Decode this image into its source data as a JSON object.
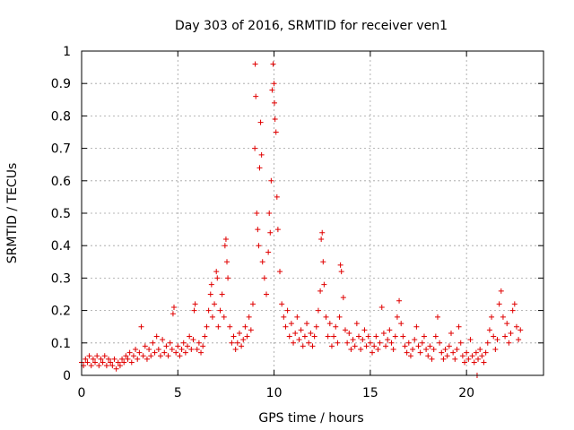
{
  "chart_data": {
    "type": "scatter",
    "title": "Day 303 of 2016, SRMTID for receiver ven1",
    "xlabel": "GPS time / hours",
    "ylabel": "SRMTID / TECUs",
    "xlim": [
      0,
      24
    ],
    "ylim": [
      0,
      1
    ],
    "xticks": [
      0,
      5,
      10,
      15,
      20
    ],
    "yticks": [
      0,
      0.1,
      0.2,
      0.3,
      0.4,
      0.5,
      0.6,
      0.7,
      0.8,
      0.9,
      1
    ],
    "xtick_labels": [
      "0",
      "5",
      "10",
      "15",
      "20"
    ],
    "ytick_labels": [
      "0",
      "0.1",
      "0.2",
      "0.3",
      "0.4",
      "0.5",
      "0.6",
      "0.7",
      "0.8",
      "0.9",
      "1"
    ],
    "grid": true,
    "marker": "+",
    "series": [
      {
        "name": "SRMTID",
        "color": "#e00000",
        "points": [
          [
            0.0,
            0.04
          ],
          [
            0.1,
            0.03
          ],
          [
            0.2,
            0.05
          ],
          [
            0.3,
            0.04
          ],
          [
            0.4,
            0.06
          ],
          [
            0.5,
            0.03
          ],
          [
            0.6,
            0.05
          ],
          [
            0.7,
            0.04
          ],
          [
            0.8,
            0.06
          ],
          [
            0.9,
            0.03
          ],
          [
            1.0,
            0.05
          ],
          [
            1.1,
            0.04
          ],
          [
            1.2,
            0.06
          ],
          [
            1.3,
            0.03
          ],
          [
            1.4,
            0.05
          ],
          [
            1.5,
            0.04
          ],
          [
            1.6,
            0.03
          ],
          [
            1.7,
            0.05
          ],
          [
            1.8,
            0.02
          ],
          [
            1.9,
            0.04
          ],
          [
            2.0,
            0.03
          ],
          [
            2.1,
            0.05
          ],
          [
            2.2,
            0.04
          ],
          [
            2.3,
            0.06
          ],
          [
            2.4,
            0.05
          ],
          [
            2.5,
            0.07
          ],
          [
            2.6,
            0.04
          ],
          [
            2.7,
            0.06
          ],
          [
            2.8,
            0.08
          ],
          [
            2.9,
            0.05
          ],
          [
            3.0,
            0.07
          ],
          [
            3.1,
            0.15
          ],
          [
            3.2,
            0.06
          ],
          [
            3.3,
            0.09
          ],
          [
            3.4,
            0.05
          ],
          [
            3.5,
            0.08
          ],
          [
            3.6,
            0.06
          ],
          [
            3.7,
            0.1
          ],
          [
            3.8,
            0.07
          ],
          [
            3.9,
            0.12
          ],
          [
            4.0,
            0.08
          ],
          [
            4.1,
            0.06
          ],
          [
            4.2,
            0.11
          ],
          [
            4.3,
            0.07
          ],
          [
            4.4,
            0.09
          ],
          [
            4.5,
            0.06
          ],
          [
            4.6,
            0.1
          ],
          [
            4.7,
            0.08
          ],
          [
            4.75,
            0.19
          ],
          [
            4.8,
            0.21
          ],
          [
            4.9,
            0.07
          ],
          [
            5.0,
            0.09
          ],
          [
            5.1,
            0.06
          ],
          [
            5.2,
            0.08
          ],
          [
            5.3,
            0.1
          ],
          [
            5.4,
            0.07
          ],
          [
            5.5,
            0.09
          ],
          [
            5.6,
            0.12
          ],
          [
            5.7,
            0.08
          ],
          [
            5.8,
            0.11
          ],
          [
            5.85,
            0.2
          ],
          [
            5.9,
            0.22
          ],
          [
            6.0,
            0.08
          ],
          [
            6.1,
            0.1
          ],
          [
            6.2,
            0.07
          ],
          [
            6.3,
            0.09
          ],
          [
            6.4,
            0.12
          ],
          [
            6.5,
            0.15
          ],
          [
            6.6,
            0.2
          ],
          [
            6.7,
            0.25
          ],
          [
            6.75,
            0.28
          ],
          [
            6.8,
            0.18
          ],
          [
            6.9,
            0.22
          ],
          [
            7.0,
            0.32
          ],
          [
            7.05,
            0.3
          ],
          [
            7.1,
            0.15
          ],
          [
            7.2,
            0.2
          ],
          [
            7.3,
            0.25
          ],
          [
            7.4,
            0.18
          ],
          [
            7.45,
            0.4
          ],
          [
            7.5,
            0.42
          ],
          [
            7.55,
            0.35
          ],
          [
            7.6,
            0.3
          ],
          [
            7.7,
            0.15
          ],
          [
            7.8,
            0.1
          ],
          [
            7.9,
            0.12
          ],
          [
            8.0,
            0.08
          ],
          [
            8.1,
            0.1
          ],
          [
            8.2,
            0.13
          ],
          [
            8.3,
            0.09
          ],
          [
            8.4,
            0.11
          ],
          [
            8.5,
            0.15
          ],
          [
            8.6,
            0.12
          ],
          [
            8.7,
            0.18
          ],
          [
            8.8,
            0.14
          ],
          [
            8.9,
            0.22
          ],
          [
            9.0,
            0.7
          ],
          [
            9.02,
            0.96
          ],
          [
            9.05,
            0.86
          ],
          [
            9.1,
            0.5
          ],
          [
            9.15,
            0.45
          ],
          [
            9.2,
            0.4
          ],
          [
            9.25,
            0.64
          ],
          [
            9.3,
            0.78
          ],
          [
            9.35,
            0.68
          ],
          [
            9.4,
            0.35
          ],
          [
            9.5,
            0.3
          ],
          [
            9.6,
            0.25
          ],
          [
            9.7,
            0.38
          ],
          [
            9.75,
            0.5
          ],
          [
            9.8,
            0.44
          ],
          [
            9.85,
            0.6
          ],
          [
            9.9,
            0.88
          ],
          [
            9.95,
            0.96
          ],
          [
            10.0,
            0.9
          ],
          [
            10.02,
            0.84
          ],
          [
            10.05,
            0.79
          ],
          [
            10.1,
            0.75
          ],
          [
            10.15,
            0.55
          ],
          [
            10.2,
            0.45
          ],
          [
            10.3,
            0.32
          ],
          [
            10.4,
            0.22
          ],
          [
            10.5,
            0.18
          ],
          [
            10.6,
            0.15
          ],
          [
            10.7,
            0.2
          ],
          [
            10.8,
            0.12
          ],
          [
            10.9,
            0.16
          ],
          [
            11.0,
            0.1
          ],
          [
            11.1,
            0.13
          ],
          [
            11.2,
            0.18
          ],
          [
            11.3,
            0.11
          ],
          [
            11.4,
            0.14
          ],
          [
            11.5,
            0.09
          ],
          [
            11.6,
            0.12
          ],
          [
            11.7,
            0.16
          ],
          [
            11.8,
            0.1
          ],
          [
            11.9,
            0.13
          ],
          [
            12.0,
            0.09
          ],
          [
            12.1,
            0.12
          ],
          [
            12.2,
            0.15
          ],
          [
            12.3,
            0.2
          ],
          [
            12.4,
            0.26
          ],
          [
            12.45,
            0.42
          ],
          [
            12.5,
            0.44
          ],
          [
            12.55,
            0.35
          ],
          [
            12.6,
            0.28
          ],
          [
            12.7,
            0.18
          ],
          [
            12.8,
            0.12
          ],
          [
            12.9,
            0.16
          ],
          [
            13.0,
            0.09
          ],
          [
            13.1,
            0.12
          ],
          [
            13.2,
            0.15
          ],
          [
            13.3,
            0.1
          ],
          [
            13.4,
            0.18
          ],
          [
            13.45,
            0.34
          ],
          [
            13.5,
            0.32
          ],
          [
            13.6,
            0.24
          ],
          [
            13.7,
            0.14
          ],
          [
            13.8,
            0.1
          ],
          [
            13.9,
            0.13
          ],
          [
            14.0,
            0.08
          ],
          [
            14.1,
            0.11
          ],
          [
            14.2,
            0.09
          ],
          [
            14.3,
            0.16
          ],
          [
            14.4,
            0.12
          ],
          [
            14.5,
            0.08
          ],
          [
            14.6,
            0.11
          ],
          [
            14.7,
            0.14
          ],
          [
            14.8,
            0.09
          ],
          [
            14.9,
            0.12
          ],
          [
            15.0,
            0.1
          ],
          [
            15.1,
            0.07
          ],
          [
            15.2,
            0.09
          ],
          [
            15.3,
            0.12
          ],
          [
            15.4,
            0.08
          ],
          [
            15.5,
            0.1
          ],
          [
            15.6,
            0.21
          ],
          [
            15.7,
            0.13
          ],
          [
            15.8,
            0.09
          ],
          [
            15.9,
            0.11
          ],
          [
            16.0,
            0.14
          ],
          [
            16.1,
            0.1
          ],
          [
            16.2,
            0.08
          ],
          [
            16.3,
            0.12
          ],
          [
            16.4,
            0.18
          ],
          [
            16.5,
            0.23
          ],
          [
            16.6,
            0.16
          ],
          [
            16.7,
            0.12
          ],
          [
            16.8,
            0.09
          ],
          [
            16.9,
            0.07
          ],
          [
            17.0,
            0.1
          ],
          [
            17.1,
            0.06
          ],
          [
            17.2,
            0.08
          ],
          [
            17.3,
            0.11
          ],
          [
            17.4,
            0.15
          ],
          [
            17.5,
            0.09
          ],
          [
            17.6,
            0.07
          ],
          [
            17.7,
            0.1
          ],
          [
            17.8,
            0.12
          ],
          [
            17.9,
            0.08
          ],
          [
            18.0,
            0.06
          ],
          [
            18.1,
            0.09
          ],
          [
            18.2,
            0.05
          ],
          [
            18.3,
            0.08
          ],
          [
            18.4,
            0.12
          ],
          [
            18.5,
            0.18
          ],
          [
            18.6,
            0.1
          ],
          [
            18.7,
            0.07
          ],
          [
            18.8,
            0.05
          ],
          [
            18.9,
            0.08
          ],
          [
            19.0,
            0.06
          ],
          [
            19.1,
            0.09
          ],
          [
            19.2,
            0.13
          ],
          [
            19.3,
            0.07
          ],
          [
            19.4,
            0.05
          ],
          [
            19.5,
            0.08
          ],
          [
            19.6,
            0.15
          ],
          [
            19.7,
            0.1
          ],
          [
            19.8,
            0.06
          ],
          [
            19.9,
            0.04
          ],
          [
            20.0,
            0.07
          ],
          [
            20.1,
            0.05
          ],
          [
            20.2,
            0.11
          ],
          [
            20.3,
            0.06
          ],
          [
            20.4,
            0.04
          ],
          [
            20.5,
            0.07
          ],
          [
            20.55,
            0.0
          ],
          [
            20.6,
            0.05
          ],
          [
            20.7,
            0.08
          ],
          [
            20.8,
            0.06
          ],
          [
            20.9,
            0.04
          ],
          [
            21.0,
            0.07
          ],
          [
            21.1,
            0.1
          ],
          [
            21.2,
            0.14
          ],
          [
            21.3,
            0.18
          ],
          [
            21.4,
            0.12
          ],
          [
            21.5,
            0.08
          ],
          [
            21.6,
            0.11
          ],
          [
            21.7,
            0.22
          ],
          [
            21.8,
            0.26
          ],
          [
            21.9,
            0.18
          ],
          [
            22.0,
            0.12
          ],
          [
            22.1,
            0.16
          ],
          [
            22.2,
            0.1
          ],
          [
            22.3,
            0.13
          ],
          [
            22.4,
            0.2
          ],
          [
            22.5,
            0.22
          ],
          [
            22.6,
            0.15
          ],
          [
            22.7,
            0.11
          ],
          [
            22.8,
            0.14
          ]
        ]
      }
    ]
  }
}
